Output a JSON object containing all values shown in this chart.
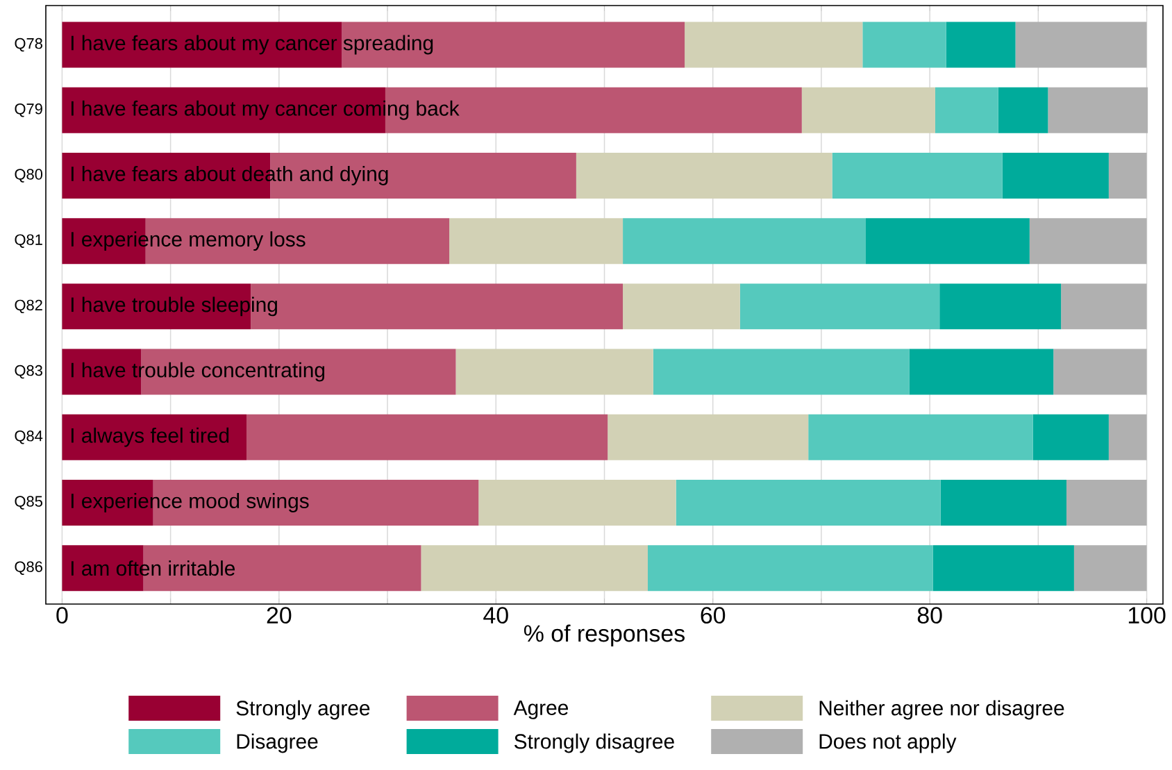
{
  "chart_data": {
    "type": "bar",
    "orientation": "horizontal",
    "stacked": true,
    "xlabel": "% of responses",
    "categories": [
      "Q78",
      "Q79",
      "Q80",
      "Q81",
      "Q82",
      "Q83",
      "Q84",
      "Q85",
      "Q86"
    ],
    "series": [
      {
        "name": "Strongly agree",
        "color": "#990033",
        "values": [
          25.8,
          29.8,
          19.2,
          7.7,
          17.4,
          7.3,
          17.0,
          8.4,
          7.5
        ]
      },
      {
        "name": "Agree",
        "color": "#bc5672",
        "values": [
          31.6,
          38.4,
          28.2,
          28.0,
          34.3,
          29.0,
          33.3,
          30.0,
          25.6
        ]
      },
      {
        "name": "Neither agree nor disagree",
        "color": "#d2d1b5",
        "values": [
          16.4,
          12.3,
          23.6,
          16.0,
          10.8,
          18.2,
          18.5,
          18.2,
          20.9
        ]
      },
      {
        "name": "Disagree",
        "color": "#55c9bd",
        "values": [
          7.7,
          5.8,
          15.7,
          22.4,
          18.4,
          23.6,
          20.7,
          24.4,
          26.3
        ]
      },
      {
        "name": "Strongly disagree",
        "color": "#00ab9b",
        "values": [
          6.4,
          4.6,
          9.8,
          15.1,
          11.2,
          13.3,
          7.0,
          11.6,
          13.0
        ]
      },
      {
        "name": "Does not apply",
        "color": "#b0b0b0",
        "values": [
          12.1,
          9.2,
          3.5,
          10.8,
          7.9,
          8.6,
          3.5,
          7.4,
          6.7
        ]
      }
    ],
    "xlim": [
      -1.5,
      101.5
    ],
    "xticks": [
      0,
      {
        "value": 10,
        "label": null
      },
      20,
      {
        "value": 30,
        "label": null
      },
      40,
      {
        "value": 50,
        "label": null
      },
      60,
      {
        "value": 70,
        "label": null
      },
      80,
      {
        "value": 90,
        "label": null
      },
      100
    ],
    "grid": "x",
    "legend": "bottom",
    "annotations": [
      "I have fears about my cancer spreading",
      "I have fears about my cancer coming back",
      "I have fears about death and dying",
      "I experience memory loss",
      "I have trouble sleeping",
      "I have trouble concentrating",
      "I always feel tired",
      "I experience mood swings",
      "I am often irritable"
    ]
  }
}
